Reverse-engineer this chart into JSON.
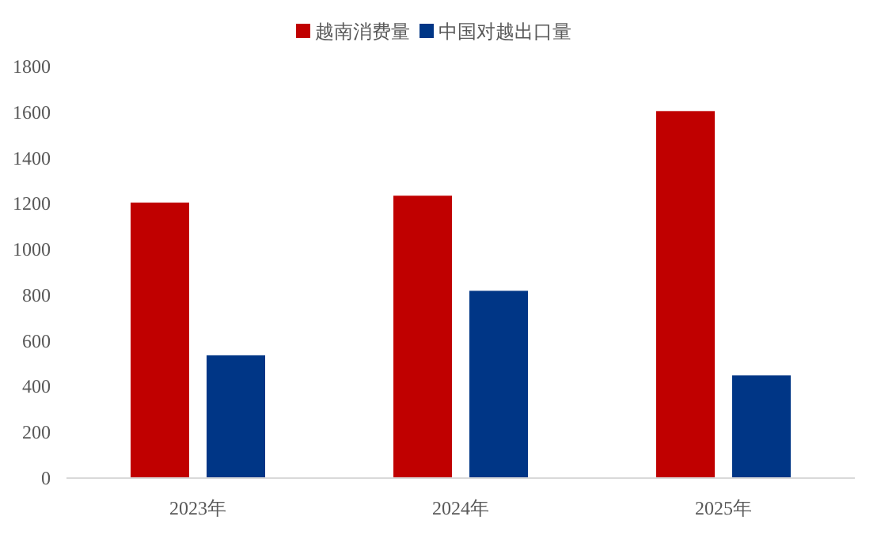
{
  "chart_data": {
    "type": "bar",
    "categories": [
      "2023年",
      "2024年",
      "2025年"
    ],
    "series": [
      {
        "name": "越南消费量",
        "color": "#c00000",
        "values": [
          1205,
          1235,
          1605
        ]
      },
      {
        "name": "中国对越出口量",
        "color": "#003686",
        "values": [
          537,
          819,
          449
        ]
      }
    ],
    "ylim": [
      0,
      1800
    ],
    "yticks": [
      0,
      200,
      400,
      600,
      800,
      1000,
      1200,
      1400,
      1600,
      1800
    ],
    "grid": false,
    "legend": "top"
  }
}
